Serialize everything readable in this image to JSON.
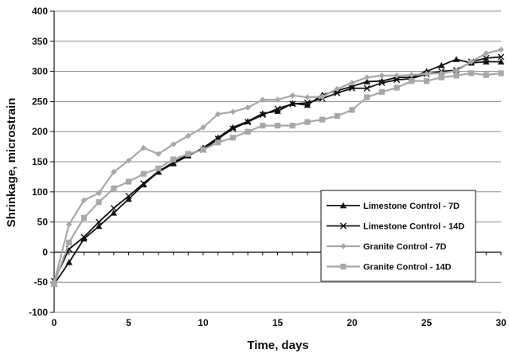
{
  "chart_data": {
    "type": "line",
    "title": "",
    "xlabel": "Time, days",
    "ylabel": "Shrinkage, microstrain",
    "xlim": [
      0,
      30
    ],
    "ylim": [
      -100,
      400
    ],
    "xticks": [
      0,
      5,
      10,
      15,
      20,
      25,
      30
    ],
    "yticks": [
      -100,
      -50,
      0,
      50,
      100,
      150,
      200,
      250,
      300,
      350,
      400
    ],
    "grid": "horizontal",
    "legend_position": "right, inside lower half",
    "series": [
      {
        "name": "Limestone Control - 7D",
        "color": "#111111",
        "marker": "triangle",
        "x": [
          0,
          1,
          2,
          3,
          4,
          5,
          6,
          7,
          8,
          9,
          10,
          11,
          12,
          13,
          14,
          15,
          16,
          17,
          18,
          19,
          20,
          21,
          22,
          23,
          24,
          25,
          26,
          27,
          28,
          29,
          30
        ],
        "y": [
          -53,
          -17,
          22,
          43,
          65,
          88,
          112,
          133,
          147,
          160,
          173,
          190,
          207,
          217,
          230,
          234,
          247,
          244,
          261,
          268,
          275,
          283,
          284,
          290,
          290,
          300,
          310,
          320,
          314,
          316,
          316
        ]
      },
      {
        "name": "Limestone Control - 14D",
        "color": "#111111",
        "marker": "x",
        "x": [
          0,
          1,
          2,
          3,
          4,
          5,
          6,
          7,
          8,
          9,
          10,
          11,
          12,
          13,
          14,
          15,
          16,
          17,
          18,
          19,
          20,
          21,
          22,
          23,
          24,
          25,
          26,
          27,
          28,
          29,
          30
        ],
        "y": [
          -48,
          5,
          25,
          50,
          73,
          93,
          114,
          134,
          149,
          162,
          170,
          188,
          205,
          216,
          228,
          238,
          246,
          248,
          255,
          264,
          272,
          272,
          281,
          286,
          288,
          296,
          300,
          302,
          316,
          322,
          324
        ]
      },
      {
        "name": "Granite Control - 7D",
        "color": "#a8a8a8",
        "marker": "diamond",
        "x": [
          0,
          1,
          2,
          3,
          4,
          5,
          6,
          7,
          8,
          9,
          10,
          11,
          12,
          13,
          14,
          15,
          16,
          17,
          18,
          19,
          20,
          21,
          22,
          23,
          24,
          25,
          26,
          27,
          28,
          29,
          30
        ],
        "y": [
          -50,
          46,
          86,
          98,
          133,
          152,
          173,
          163,
          179,
          193,
          207,
          229,
          233,
          240,
          253,
          253,
          260,
          257,
          258,
          271,
          281,
          290,
          293,
          293,
          294,
          296,
          297,
          301,
          316,
          330,
          336
        ]
      },
      {
        "name": "Granite Control - 14D",
        "color": "#a8a8a8",
        "marker": "square",
        "x": [
          0,
          1,
          2,
          3,
          4,
          5,
          6,
          7,
          8,
          9,
          10,
          11,
          12,
          13,
          14,
          15,
          16,
          17,
          18,
          19,
          20,
          21,
          22,
          23,
          24,
          25,
          26,
          27,
          28,
          29,
          30
        ],
        "y": [
          -53,
          16,
          57,
          83,
          106,
          117,
          130,
          139,
          154,
          163,
          170,
          182,
          190,
          200,
          210,
          210,
          210,
          216,
          220,
          226,
          236,
          257,
          266,
          273,
          284,
          284,
          290,
          293,
          297,
          294,
          297
        ]
      }
    ]
  }
}
